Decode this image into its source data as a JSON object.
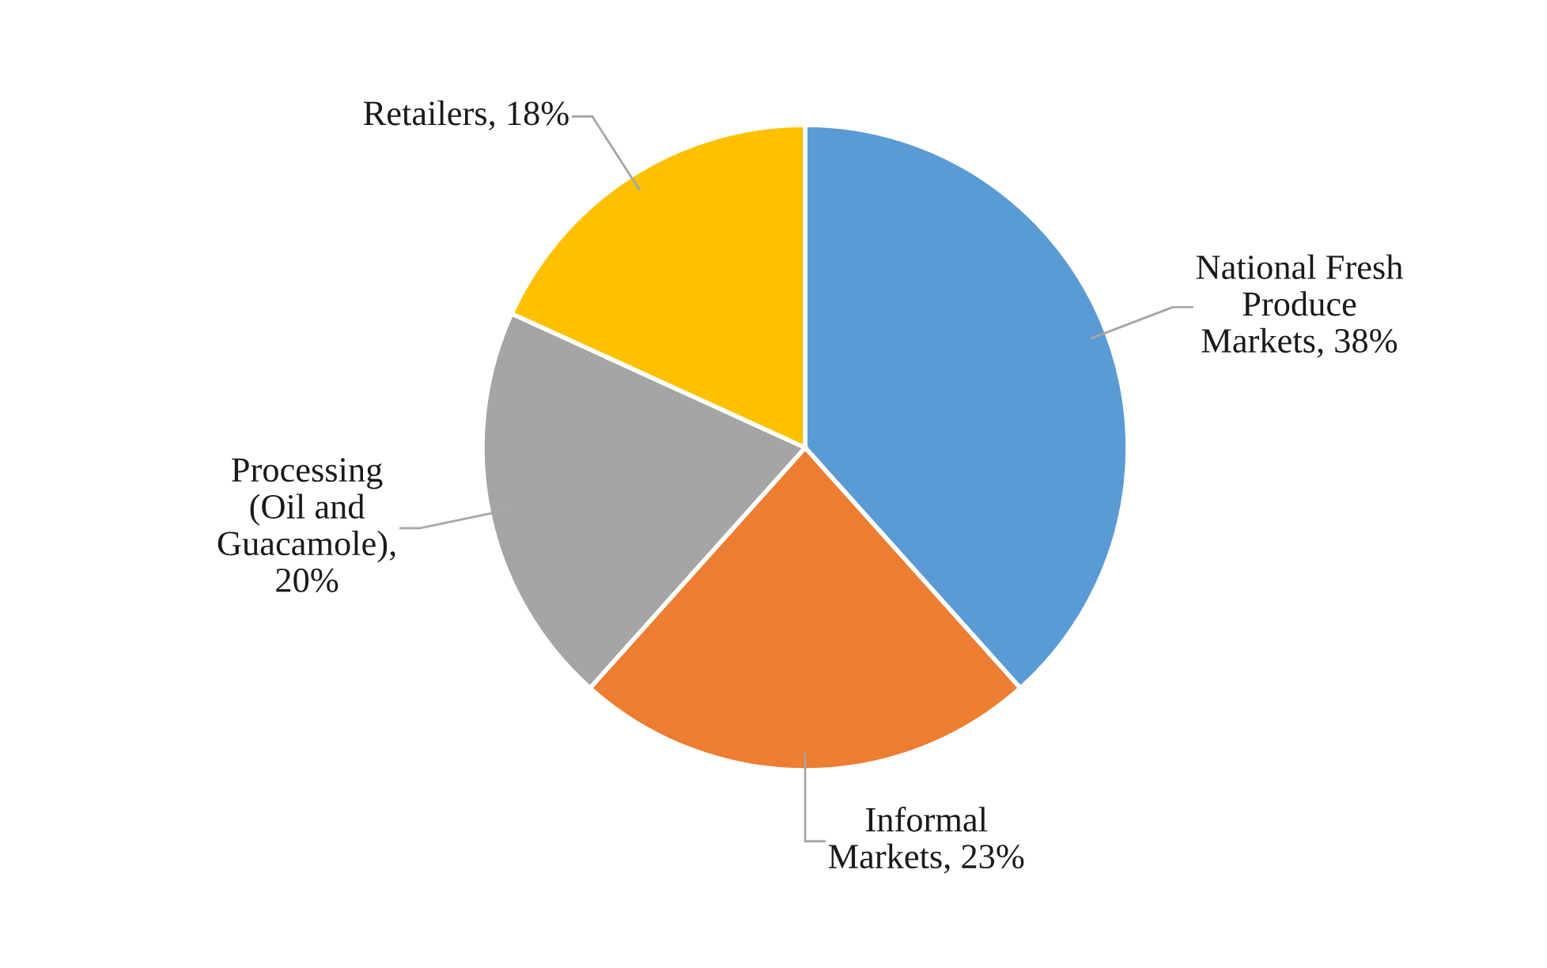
{
  "chart_data": {
    "type": "pie",
    "categories": [
      "National Fresh\nProduce\nMarkets",
      "Informal\nMarkets",
      "Processing\n(Oil and\nGuacamole)",
      "Retailers"
    ],
    "values": [
      38,
      23,
      20,
      18
    ],
    "value_labels": [
      ", 38%",
      ", 23%",
      ",\n20%",
      ", 18%"
    ],
    "colors": [
      "#5b9bd5",
      "#ed7d31",
      "#a5a5a5",
      "#ffc000"
    ]
  }
}
